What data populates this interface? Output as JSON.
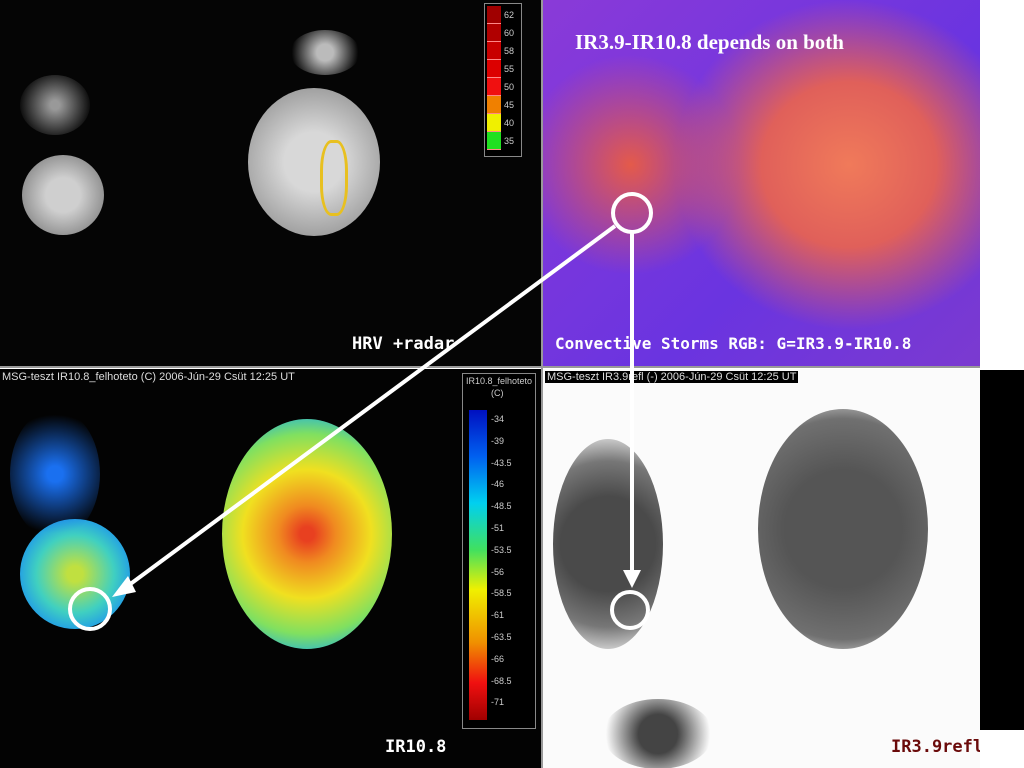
{
  "title": "IR3.9-IR10.8 depends on both",
  "panels": {
    "hrv": {
      "label": "HRV +radar",
      "legend": [
        "62",
        "60",
        "58",
        "55",
        "50",
        "45",
        "40",
        "35"
      ],
      "legend_colors": [
        "#a00000",
        "#b00000",
        "#c80000",
        "#dc0000",
        "#f01010",
        "#f08000",
        "#f0f000",
        "#20e020"
      ]
    },
    "rgb": {
      "label": "Convective Storms RGB: G=IR3.9-IR10.8"
    },
    "ir108": {
      "header": "MSG-teszt  IR10.8_felhoteto (C)  2006-Jún-29 Csüt 12:25 UT",
      "label": "IR10.8",
      "legend_title": "IR10.8_felhoteto",
      "legend_unit": "(C)",
      "legend": [
        "-34",
        "-39",
        "-43.5",
        "-46",
        "-48.5",
        "-51",
        "-53.5",
        "-56",
        "-58.5",
        "-61",
        "-63.5",
        "-66",
        "-68.5",
        "-71"
      ]
    },
    "ir39": {
      "header": "MSG-teszt  IR3.9refl (-)  2006-Jún-29 Csüt 12:25 UT",
      "label": "IR3.9refl"
    }
  },
  "colors": {
    "circle": "#ffffff",
    "arrow": "#ffffff",
    "ir39_label": "#6a0a0a"
  }
}
